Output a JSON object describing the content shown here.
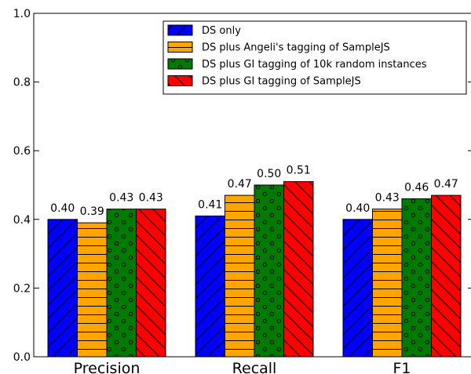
{
  "chart_data": {
    "type": "bar",
    "categories": [
      "Precision",
      "Recall",
      "F1"
    ],
    "series": [
      {
        "name": "DS only",
        "values": [
          0.4,
          0.41,
          0.4
        ],
        "labels": [
          "0.40",
          "0.41",
          "0.40"
        ],
        "color": "#0000ff",
        "hatch": "diagonal-up"
      },
      {
        "name": "DS plus Angeli's tagging of SampleJS",
        "values": [
          0.39,
          0.47,
          0.43
        ],
        "labels": [
          "0.39",
          "0.47",
          "0.43"
        ],
        "color": "#ffa500",
        "hatch": "horizontal"
      },
      {
        "name": "DS plus GI tagging of 10k random instances",
        "values": [
          0.43,
          0.5,
          0.46
        ],
        "labels": [
          "0.43",
          "0.50",
          "0.46"
        ],
        "color": "#007a00",
        "hatch": "circles"
      },
      {
        "name": "DS plus GI tagging of SampleJS",
        "values": [
          0.43,
          0.51,
          0.47
        ],
        "labels": [
          "0.43",
          "0.51",
          "0.47"
        ],
        "color": "#ff0000",
        "hatch": "diagonal-down"
      }
    ],
    "yticks": [
      "0.0",
      "0.2",
      "0.4",
      "0.6",
      "0.8",
      "1.0"
    ],
    "ylim": [
      0,
      1.0
    ],
    "grid": false,
    "legend_position": "top-right"
  }
}
